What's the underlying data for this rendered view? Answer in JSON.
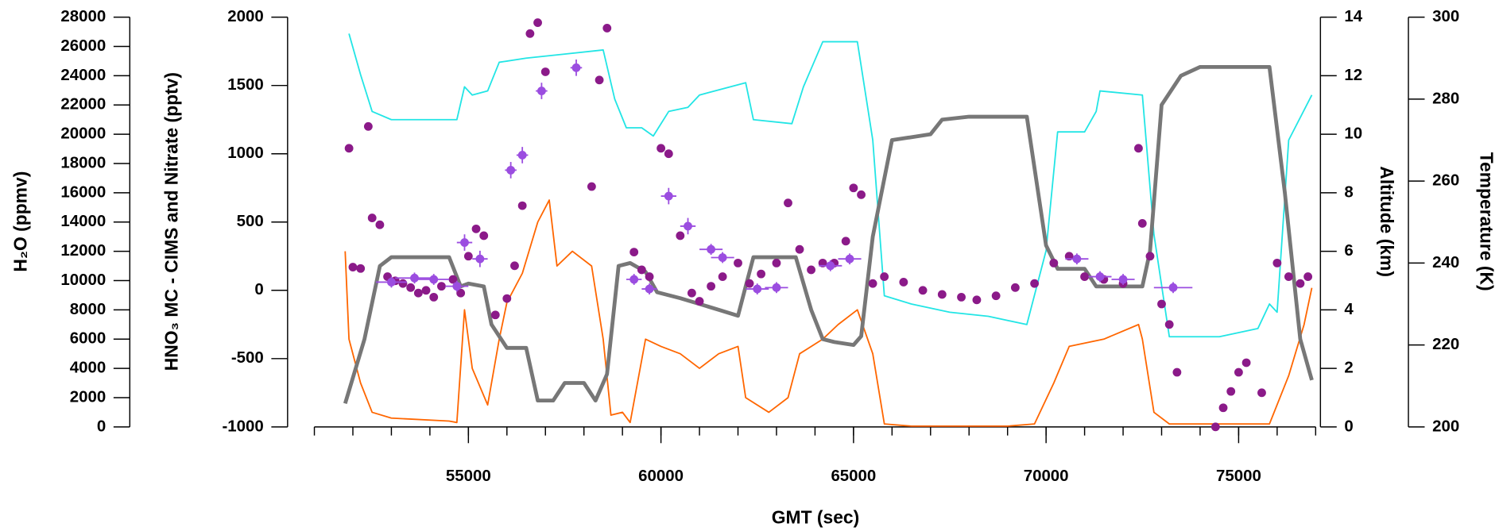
{
  "chart_data": {
    "type": "line",
    "xlabel": "GMT (sec)",
    "ylabel": "HNO₃ MC - CIMS and Nitrate (pptv)",
    "y2label": "Altitude (km)",
    "y3label": "H₂O (ppmv)",
    "y4label": "Temperature (K)",
    "xlim": [
      51000,
      77000
    ],
    "xticks": [
      55000,
      60000,
      65000,
      70000,
      75000
    ],
    "xminorticks": [
      51000,
      52000,
      53000,
      54000,
      55000,
      56000,
      57000,
      58000,
      59000,
      60000,
      61000,
      62000,
      63000,
      64000,
      65000,
      66000,
      67000,
      68000,
      69000,
      70000,
      71000,
      72000,
      73000,
      74000,
      75000,
      76000,
      77000
    ],
    "ylim": [
      -1000,
      2000
    ],
    "yticks": [
      -1000,
      -500,
      0,
      500,
      1000,
      1500,
      2000
    ],
    "y2lim": [
      0,
      14
    ],
    "y2ticks": [
      0,
      2,
      4,
      6,
      8,
      10,
      12,
      14
    ],
    "y3lim": [
      0,
      28000
    ],
    "y3ticks": [
      0,
      2000,
      4000,
      6000,
      8000,
      10000,
      12000,
      14000,
      16000,
      18000,
      20000,
      22000,
      24000,
      26000,
      28000
    ],
    "y4lim": [
      200,
      300
    ],
    "y4ticks": [
      200,
      220,
      240,
      260,
      280,
      300
    ],
    "series": [
      {
        "type": "line",
        "axis": "y4",
        "color": "#22e5e5",
        "x": [
          51900,
          52200,
          52500,
          53000,
          54700,
          54900,
          55100,
          55500,
          55800,
          56500,
          57500,
          58500,
          58800,
          59100,
          59500,
          59800,
          60200,
          60700,
          61000,
          62200,
          62400,
          63400,
          63700,
          64200,
          65100,
          65500,
          65800,
          66500,
          67500,
          68500,
          69500,
          70000,
          70300,
          71000,
          71300,
          71400,
          72500,
          72800,
          73200,
          74500,
          75500,
          75800,
          76000,
          76300,
          76900
        ],
        "values": [
          296,
          286,
          277,
          275,
          275,
          283,
          281,
          282,
          289,
          290,
          291,
          292,
          280,
          273,
          273,
          271,
          277,
          278,
          281,
          284,
          275,
          274,
          283,
          294,
          294,
          270,
          232,
          230,
          228,
          227,
          225,
          243,
          272,
          272,
          277,
          282,
          281,
          247,
          222,
          222,
          224,
          230,
          228,
          270,
          281
        ]
      },
      {
        "type": "line",
        "axis": "y3",
        "color": "#ff6600",
        "x": [
          51800,
          51900,
          52200,
          52500,
          53000,
          54500,
          54700,
          54900,
          55100,
          55500,
          55800,
          56000,
          56400,
          56800,
          57100,
          57300,
          57700,
          58200,
          58500,
          58700,
          59000,
          59200,
          59600,
          60000,
          60500,
          61000,
          61500,
          62000,
          62200,
          62800,
          63300,
          63600,
          64200,
          64600,
          65100,
          65500,
          65800,
          66500,
          69000,
          69700,
          70200,
          70600,
          71500,
          72400,
          72500,
          72800,
          73200,
          75800,
          76300,
          76700,
          76900
        ],
        "values": [
          12000,
          6000,
          3000,
          1000,
          600,
          400,
          300,
          8000,
          4000,
          1500,
          6000,
          8500,
          10500,
          14000,
          15500,
          11000,
          12000,
          11000,
          6000,
          800,
          1000,
          300,
          6000,
          5500,
          5000,
          4000,
          5000,
          5500,
          2000,
          1000,
          2000,
          5000,
          6000,
          7000,
          8000,
          5000,
          200,
          50,
          50,
          200,
          3000,
          5500,
          6000,
          7000,
          6000,
          1000,
          200,
          200,
          3500,
          7000,
          9500
        ]
      },
      {
        "type": "line",
        "axis": "y2",
        "color": "#777777",
        "x": [
          51800,
          52300,
          52700,
          53000,
          54500,
          54800,
          55000,
          55400,
          55600,
          56000,
          56500,
          56800,
          57200,
          57500,
          58000,
          58300,
          58600,
          58900,
          59200,
          59600,
          59900,
          60500,
          61000,
          61500,
          62000,
          62200,
          62400,
          63500,
          63900,
          64200,
          64500,
          65000,
          65200,
          65500,
          66000,
          67000,
          67300,
          68000,
          69500,
          70000,
          70300,
          71000,
          71300,
          72500,
          72700,
          73000,
          73500,
          74000,
          75800,
          76200,
          76600,
          76900
        ],
        "values": [
          0.8,
          3,
          5.5,
          5.8,
          5.8,
          4.8,
          4.9,
          4.8,
          3.5,
          2.7,
          2.7,
          0.9,
          0.9,
          1.5,
          1.5,
          0.9,
          1.8,
          5.5,
          5.6,
          5.3,
          4.6,
          4.4,
          4.2,
          4,
          3.8,
          4.8,
          5.8,
          5.8,
          4,
          3,
          2.9,
          2.8,
          3.1,
          6.5,
          9.8,
          10,
          10.5,
          10.6,
          10.6,
          6.2,
          5.4,
          5.4,
          4.8,
          4.8,
          6,
          11,
          12,
          12.3,
          12.3,
          8,
          3,
          1.6
        ]
      },
      {
        "type": "scatter",
        "axis": "y",
        "color": "#8b1a89",
        "x": [
          51900,
          52000,
          52200,
          52400,
          52500,
          52700,
          52900,
          53100,
          53300,
          53500,
          53700,
          53900,
          54100,
          54300,
          54600,
          54800,
          55000,
          55200,
          55400,
          55700,
          56000,
          56200,
          56400,
          56600,
          56800,
          57000,
          58200,
          58400,
          58600,
          59300,
          59500,
          59700,
          60000,
          60200,
          60500,
          60800,
          61000,
          61300,
          61600,
          62000,
          62300,
          62600,
          63000,
          63300,
          63600,
          63900,
          64200,
          64500,
          64800,
          65000,
          65200,
          65500,
          65800,
          66300,
          66800,
          67300,
          67800,
          68200,
          68700,
          69200,
          69700,
          70200,
          70600,
          71000,
          71500,
          72000,
          72400,
          72500,
          72700,
          73000,
          73200,
          73400,
          74400,
          74600,
          74800,
          75000,
          75200,
          75600,
          76000,
          76300,
          76600,
          76800
        ],
        "values": [
          1040,
          170,
          160,
          1200,
          530,
          480,
          100,
          70,
          50,
          20,
          -20,
          0,
          -50,
          30,
          80,
          -20,
          250,
          450,
          400,
          -180,
          -60,
          180,
          620,
          1880,
          1960,
          1600,
          760,
          1540,
          1920,
          280,
          150,
          100,
          1040,
          1000,
          400,
          -20,
          -80,
          30,
          100,
          200,
          50,
          120,
          200,
          640,
          300,
          150,
          200,
          200,
          360,
          750,
          700,
          50,
          100,
          60,
          0,
          -30,
          -50,
          -70,
          -40,
          20,
          50,
          200,
          250,
          100,
          80,
          50,
          1040,
          490,
          250,
          -100,
          -250,
          -600,
          -1000,
          -860,
          -740,
          -600,
          -530,
          -750,
          200,
          100,
          50,
          100
        ]
      },
      {
        "type": "errorbar",
        "axis": "y",
        "color": "#9b4de0",
        "x": [
          53000,
          53600,
          54100,
          54700,
          54900,
          55300,
          56100,
          56400,
          56900,
          57800,
          59300,
          59700,
          60200,
          60700,
          61300,
          61600,
          62500,
          63000,
          64400,
          64900,
          70800,
          71400,
          72000,
          73300
        ],
        "values": [
          60,
          90,
          80,
          30,
          350,
          230,
          880,
          990,
          1460,
          1630,
          80,
          10,
          690,
          470,
          300,
          240,
          10,
          20,
          180,
          230,
          230,
          100,
          80,
          20
        ],
        "xerr": [
          400,
          500,
          400,
          300,
          200,
          200,
          150,
          150,
          150,
          150,
          200,
          200,
          200,
          200,
          300,
          300,
          300,
          300,
          300,
          300,
          300,
          300,
          300,
          500
        ],
        "yerr": [
          40,
          40,
          40,
          40,
          60,
          60,
          60,
          60,
          60,
          60,
          40,
          40,
          60,
          60,
          40,
          40,
          40,
          40,
          40,
          40,
          40,
          40,
          40,
          40
        ]
      }
    ]
  }
}
